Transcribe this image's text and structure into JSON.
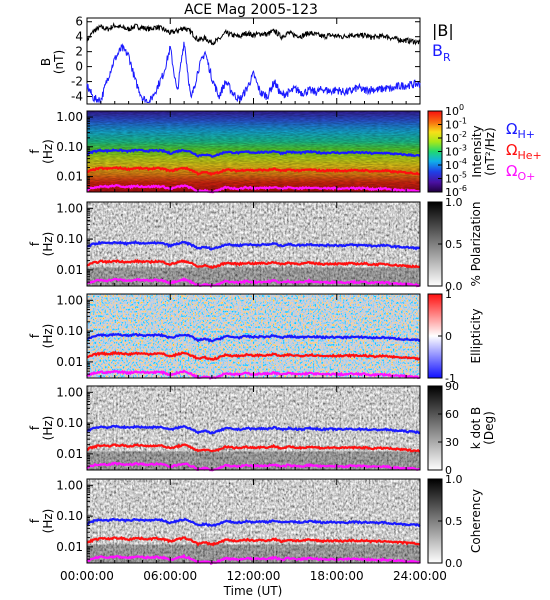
{
  "title": "ACE Mag 2005-123",
  "xlabel": "Time (UT)",
  "xticks": [
    "00:00:00",
    "06:00:00",
    "12:00:00",
    "18:00:00",
    "24:00:00"
  ],
  "colors": {
    "black": "#000000",
    "blue": "#1a1aff",
    "red": "#ff1010",
    "magenta": "#ff10ff"
  },
  "chart_data": [
    {
      "type": "line",
      "panel": "magnetic-field",
      "ylabel": "B",
      "yunit": "(nT)",
      "ylim": [
        -5,
        6.5
      ],
      "yticks": [
        "6",
        "4",
        "2",
        "0",
        "-2",
        "-4"
      ],
      "ytick_values": [
        6,
        4,
        2,
        0,
        -2,
        -4
      ],
      "x_hours": [
        0,
        0.5,
        1,
        1.5,
        2,
        2.5,
        3,
        3.5,
        4,
        4.5,
        5,
        5.5,
        6,
        6.5,
        7,
        7.5,
        8,
        8.5,
        9,
        9.5,
        10,
        10.5,
        11,
        11.5,
        12,
        12.5,
        13,
        13.5,
        14,
        14.5,
        15,
        15.5,
        16,
        16.5,
        17,
        17.5,
        18,
        18.5,
        19,
        19.5,
        20,
        20.5,
        21,
        21.5,
        22,
        22.5,
        23,
        23.5,
        24
      ],
      "series": [
        {
          "name": "|B|",
          "color": "#000000",
          "values": [
            3.5,
            4.8,
            5.3,
            5.0,
            5.5,
            5.2,
            5.0,
            5.4,
            5.2,
            5.0,
            5.3,
            5.0,
            4.5,
            4.8,
            5.2,
            4.6,
            3.6,
            3.8,
            3.2,
            3.6,
            4.5,
            4.2,
            4.0,
            4.5,
            4.2,
            4.4,
            4.3,
            4.8,
            4.0,
            4.5,
            4.2,
            4.1,
            4.5,
            4.3,
            4.0,
            4.2,
            4.1,
            4.0,
            4.3,
            4.1,
            4.2,
            3.9,
            4.0,
            4.1,
            3.8,
            3.6,
            3.5,
            3.4,
            3.2
          ]
        },
        {
          "name": "B",
          "subscript": "R",
          "color": "#1a1aff",
          "values": [
            -2.5,
            -4.3,
            -4.5,
            -1.5,
            1.0,
            2.5,
            1.5,
            -2.0,
            -4.2,
            -4.8,
            -3.0,
            -1.0,
            2.5,
            -3.5,
            3.5,
            -4.5,
            -0.5,
            2.0,
            -1.5,
            -4.0,
            -2.0,
            -3.5,
            -4.5,
            -3.0,
            -1.0,
            -3.5,
            -4.0,
            -2.0,
            -3.8,
            -3.5,
            -3.0,
            -3.5,
            -3.2,
            -3.4,
            -3.0,
            -3.3,
            -3.1,
            -3.4,
            -3.3,
            -2.8,
            -3.2,
            -3.0,
            -3.1,
            -2.9,
            -3.0,
            -2.6,
            -2.5,
            -2.4,
            -2.3
          ]
        }
      ]
    },
    {
      "type": "heatmap",
      "panel": "intensity",
      "ylabel": "f",
      "yunit": "(Hz)",
      "yscale": "log",
      "ylim": [
        0.003,
        1.6
      ],
      "yticks": [
        "1.00",
        "0.10",
        "0.01"
      ],
      "colorbar": {
        "label": "Intensity",
        "unit": "(nT²/Hz)",
        "scale": "log",
        "range": [
          1e-06,
          1
        ],
        "ticks": [
          {
            "base": "10",
            "exp": "0"
          },
          {
            "base": "10",
            "exp": "-1"
          },
          {
            "base": "10",
            "exp": "-2"
          },
          {
            "base": "10",
            "exp": "-3"
          },
          {
            "base": "10",
            "exp": "-4"
          },
          {
            "base": "10",
            "exp": "-5"
          },
          {
            "base": "10",
            "exp": "-6"
          }
        ]
      }
    },
    {
      "type": "heatmap",
      "panel": "polarization",
      "ylabel": "f",
      "yunit": "(Hz)",
      "yscale": "log",
      "ylim": [
        0.003,
        1.6
      ],
      "yticks": [
        "1.00",
        "0.10",
        "0.01"
      ],
      "colorbar": {
        "label": "% Polarization",
        "range": [
          0,
          1
        ],
        "ticks": [
          "1.0",
          "0.5",
          "0.0"
        ]
      }
    },
    {
      "type": "heatmap",
      "panel": "ellipticity",
      "ylabel": "f",
      "yunit": "(Hz)",
      "yscale": "log",
      "ylim": [
        0.003,
        1.6
      ],
      "yticks": [
        "1.00",
        "0.10",
        "0.01"
      ],
      "colorbar": {
        "label": "Ellipticity",
        "range": [
          -1,
          1
        ],
        "ticks": [
          "1",
          "0",
          "-1"
        ]
      }
    },
    {
      "type": "heatmap",
      "panel": "k-dot-b",
      "ylabel": "f",
      "yunit": "(Hz)",
      "yscale": "log",
      "ylim": [
        0.003,
        1.6
      ],
      "yticks": [
        "1.00",
        "0.10",
        "0.01"
      ],
      "colorbar": {
        "label": "k dot B",
        "unit": "(Deg)",
        "range": [
          0,
          90
        ],
        "ticks": [
          "90",
          "60",
          "30",
          "0"
        ]
      }
    },
    {
      "type": "heatmap",
      "panel": "coherency",
      "ylabel": "f",
      "yunit": "(Hz)",
      "yscale": "log",
      "ylim": [
        0.003,
        1.6
      ],
      "yticks": [
        "1.00",
        "0.10",
        "0.01"
      ],
      "colorbar": {
        "label": "Coherency",
        "range": [
          0,
          1
        ],
        "ticks": [
          "1.0",
          "0.5",
          "0.0"
        ]
      }
    }
  ],
  "gyrofrequency_lines": {
    "x_hours": [
      0,
      0.5,
      1,
      1.5,
      2,
      2.5,
      3,
      3.5,
      4,
      4.5,
      5,
      5.5,
      6,
      6.5,
      7,
      7.5,
      8,
      8.5,
      9,
      9.5,
      10,
      10.5,
      11,
      11.5,
      12,
      12.5,
      13,
      13.5,
      14,
      14.5,
      15,
      15.5,
      16,
      16.5,
      17,
      17.5,
      18,
      18.5,
      19,
      19.5,
      20,
      20.5,
      21,
      21.5,
      22,
      22.5,
      23,
      23.5,
      24
    ],
    "series": [
      {
        "name": "Ω",
        "subscript": "H+",
        "color": "#1a1aff",
        "values": [
          0.055,
          0.07,
          0.076,
          0.072,
          0.078,
          0.075,
          0.07,
          0.077,
          0.074,
          0.072,
          0.075,
          0.072,
          0.06,
          0.07,
          0.078,
          0.066,
          0.05,
          0.055,
          0.048,
          0.055,
          0.068,
          0.064,
          0.062,
          0.068,
          0.064,
          0.066,
          0.065,
          0.072,
          0.06,
          0.068,
          0.064,
          0.063,
          0.068,
          0.065,
          0.062,
          0.064,
          0.063,
          0.062,
          0.065,
          0.063,
          0.064,
          0.06,
          0.061,
          0.062,
          0.058,
          0.056,
          0.054,
          0.052,
          0.05
        ]
      },
      {
        "name": "Ω",
        "subscript": "He+",
        "color": "#ff1010",
        "values": [
          0.014,
          0.017,
          0.019,
          0.018,
          0.0195,
          0.019,
          0.0175,
          0.0192,
          0.0185,
          0.018,
          0.019,
          0.018,
          0.015,
          0.0175,
          0.0195,
          0.0165,
          0.0125,
          0.0138,
          0.012,
          0.0138,
          0.017,
          0.016,
          0.0155,
          0.017,
          0.016,
          0.0165,
          0.0162,
          0.018,
          0.015,
          0.017,
          0.016,
          0.0158,
          0.017,
          0.0162,
          0.0155,
          0.016,
          0.0158,
          0.0155,
          0.0162,
          0.0158,
          0.016,
          0.015,
          0.0152,
          0.0155,
          0.0145,
          0.014,
          0.0135,
          0.013,
          0.0125
        ]
      },
      {
        "name": "Ω",
        "subscript": "O+",
        "color": "#ff10ff",
        "values": [
          0.0035,
          0.0043,
          0.0047,
          0.0045,
          0.0049,
          0.0047,
          0.0044,
          0.0048,
          0.0046,
          0.0045,
          0.0047,
          0.0045,
          0.0038,
          0.0044,
          0.0049,
          0.0041,
          0.0031,
          0.0034,
          0.003,
          0.0034,
          0.0043,
          0.004,
          0.0039,
          0.0043,
          0.004,
          0.0041,
          0.0041,
          0.0045,
          0.0038,
          0.0043,
          0.004,
          0.004,
          0.0043,
          0.0041,
          0.0039,
          0.004,
          0.004,
          0.0039,
          0.0041,
          0.004,
          0.004,
          0.0038,
          0.0038,
          0.0039,
          0.0036,
          0.0035,
          0.0034,
          0.0033,
          0.0031
        ]
      }
    ]
  }
}
